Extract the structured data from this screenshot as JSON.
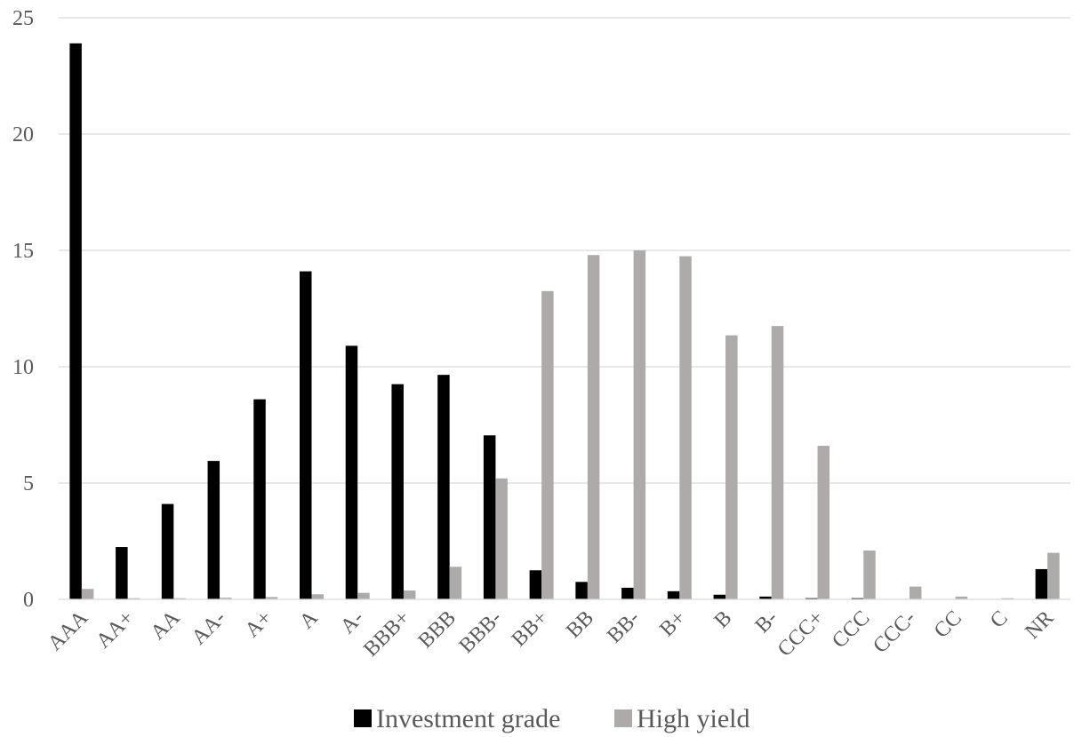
{
  "chart_data": {
    "type": "bar",
    "categories": [
      "AAA",
      "AA+",
      "AA",
      "AA-",
      "A+",
      "A",
      "A-",
      "BBB+",
      "BBB",
      "BBB-",
      "BB+",
      "BB",
      "BB-",
      "B+",
      "B",
      "B-",
      "CCC+",
      "CCC",
      "CCC-",
      "CC",
      "C",
      "NR"
    ],
    "series": [
      {
        "name": "Investment grade",
        "color": "#000000",
        "values": [
          23.9,
          2.25,
          4.1,
          5.95,
          8.6,
          14.1,
          10.9,
          9.25,
          9.65,
          7.05,
          1.25,
          0.75,
          0.5,
          0.35,
          0.2,
          0.12,
          0.05,
          0.05,
          0,
          0,
          0,
          1.3
        ]
      },
      {
        "name": "High yield",
        "color": "#aeaaaa",
        "values": [
          0.45,
          0.05,
          0.05,
          0.07,
          0.1,
          0.22,
          0.28,
          0.38,
          1.4,
          5.2,
          13.25,
          14.8,
          15.0,
          14.75,
          11.35,
          11.75,
          6.6,
          2.1,
          0.55,
          0.12,
          0.05,
          2.0
        ]
      }
    ],
    "ylim": [
      0,
      25
    ],
    "yticks": [
      "0",
      "5",
      "10",
      "15",
      "20",
      "25"
    ],
    "grid": true,
    "gridColor": "#d9d9d9",
    "legendPosition": "bottom"
  }
}
